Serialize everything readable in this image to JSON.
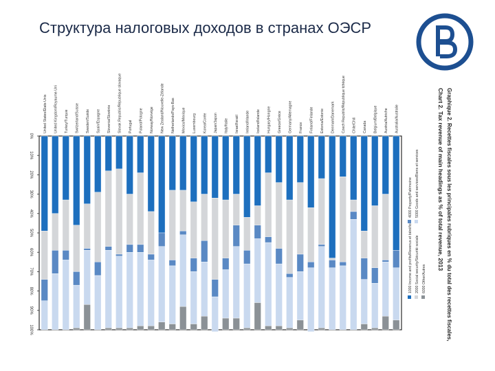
{
  "slide": {
    "title": "Структура налоговых доходов в странах ОЭСР",
    "logo_icon": "hse-logo-icon"
  },
  "colors": {
    "income": "#1d6fbe",
    "social": "#d4d6d9",
    "property": "#5a89c4",
    "goods": "#c9d9ef",
    "other": "#8b9196",
    "frame": "#2a2a2a",
    "title": "#1b2a48"
  },
  "chart_data": {
    "type": "bar",
    "stacked": true,
    "orientation": "rotated-90",
    "title": "Chart 2. Tax revenue of main headings as % of total revenue, 2013",
    "subtitle": "Graphique 2. Recettes fiscales sous les principales rubriques en % du total des recettes fiscales, 2013",
    "ylim": [
      0,
      100
    ],
    "ticks": [
      "0%",
      "10%",
      "20%",
      "30%",
      "40%",
      "50%",
      "60%",
      "70%",
      "80%",
      "90%",
      "100%"
    ],
    "legend": [
      {
        "key": "income",
        "label": "1000 Income and profits/Revenus et bénéfices"
      },
      {
        "key": "social",
        "label": "2000 Social security/Sécurité sociale"
      },
      {
        "key": "property",
        "label": "4000 Property/Patrimoine"
      },
      {
        "key": "goods",
        "label": "5000 Goods and services/Biens et services"
      },
      {
        "key": "other",
        "label": "6000 Other/Autres"
      }
    ],
    "categories": [
      "Australia/Australie",
      "Austria/Autriche",
      "Belgium/Belgique",
      "Canada",
      "Chile/Chili",
      "Czech Republic/République tchèque",
      "Denmark/Danemark",
      "Estonia/Estonie",
      "Finland/Finlande",
      "France",
      "Germany/Allemagne",
      "Greece/Grèce",
      "Hungary/Hongrie",
      "Iceland/Islande",
      "Ireland/Irlande",
      "Israel/Israël",
      "Italy/Italie",
      "Japan/Japon",
      "Korea/Corée",
      "Luxembourg",
      "Mexico/Mexique",
      "Netherlands/Pays-Bas",
      "New Zealand/Nouvelle-Zélande",
      "Norway/Norvège",
      "Poland/Pologne",
      "Portugal",
      "Slovak Republic/République slovaque",
      "Slovenia/Slovénie",
      "Spain/Espagne",
      "Sweden/Suède",
      "Switzerland/Suisse",
      "Turkey/Turquie",
      "United Kingdom/Royaume-Uni",
      "United States/États-Unis"
    ],
    "series": [
      {
        "key": "income",
        "values": [
          59,
          30,
          36,
          49,
          33,
          21,
          63,
          22,
          37,
          24,
          33,
          24,
          19,
          36,
          42,
          30,
          33,
          32,
          30,
          34,
          28,
          28,
          50,
          39,
          19,
          30,
          17,
          18,
          29,
          35,
          46,
          33,
          40,
          49
        ]
      },
      {
        "key": "social",
        "values": [
          0,
          34,
          32,
          14,
          6,
          44,
          1,
          34,
          28,
          37,
          38,
          34,
          33,
          10,
          17,
          16,
          30,
          42,
          24,
          29,
          21,
          36,
          0,
          22,
          37,
          26,
          44,
          39,
          36,
          23,
          24,
          26,
          19,
          25
        ]
      },
      {
        "key": "property",
        "values": [
          9,
          1,
          8,
          11,
          4,
          2,
          4,
          1,
          3,
          9,
          2,
          8,
          3,
          7,
          7,
          11,
          6,
          9,
          11,
          7,
          2,
          3,
          7,
          3,
          4,
          4,
          1,
          2,
          7,
          1,
          7,
          5,
          12,
          11
        ]
      },
      {
        "key": "goods",
        "values": [
          27,
          28,
          23,
          23,
          57,
          33,
          32,
          42,
          33,
          25,
          26,
          32,
          43,
          33,
          33,
          37,
          25,
          18,
          28,
          27,
          37,
          30,
          39,
          34,
          38,
          39,
          37,
          40,
          28,
          28,
          22,
          36,
          29,
          15
        ]
      },
      {
        "key": "other",
        "values": [
          5,
          7,
          1,
          3,
          0,
          0,
          0,
          1,
          0,
          5,
          1,
          2,
          2,
          14,
          1,
          6,
          6,
          0,
          7,
          3,
          12,
          3,
          4,
          2,
          2,
          1,
          1,
          1,
          0,
          13,
          1,
          0,
          0,
          0
        ]
      }
    ]
  }
}
